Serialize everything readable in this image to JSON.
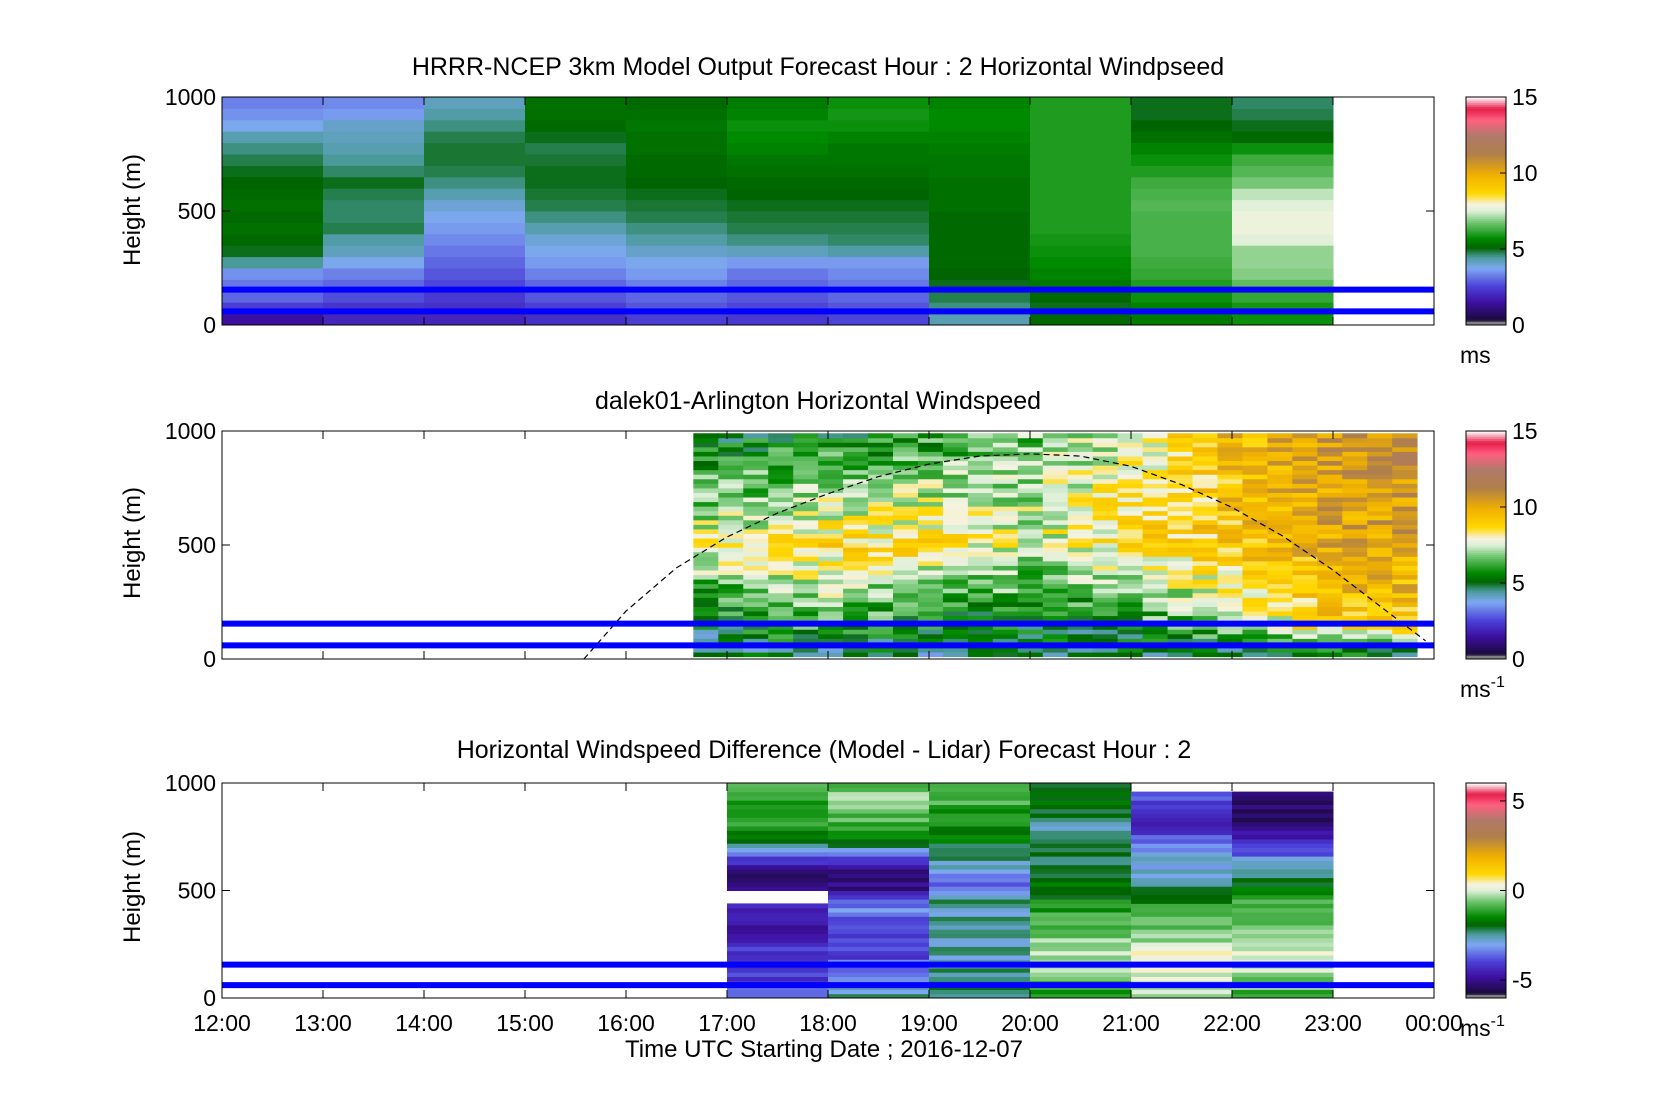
{
  "chart_data": [
    {
      "type": "heatmap",
      "title": "HRRR-NCEP 3km Model Output   Forecast Hour : 2 Horizontal Windpseed",
      "ylabel": "Height (m)",
      "ylim": [
        0,
        1000
      ],
      "xlim": [
        "12:00",
        "00:00"
      ],
      "yticks": [
        "0",
        "500",
        "1000"
      ],
      "colorbar": {
        "range": [
          0,
          15
        ],
        "ticks": [
          "0",
          "5",
          "10",
          "15"
        ],
        "unit_base": "ms",
        "unit_sup": ""
      },
      "reference_heights_m": [
        60,
        155
      ],
      "cell_height_m": 50,
      "columns": [
        {
          "t0": "12:00",
          "t1": "13:00",
          "ws": [
            1.5,
            2.5,
            3.0,
            3.2,
            3.5,
            4.5,
            5.0,
            5.2,
            5.3,
            5.2,
            5.3,
            5.2,
            5.1,
            5.0,
            4.8,
            4.6,
            4.3,
            3.8,
            3.5,
            3.3
          ]
        },
        {
          "t0": "13:00",
          "t1": "14:00",
          "ws": [
            2.0,
            2.3,
            2.7,
            3.0,
            3.3,
            3.8,
            4.2,
            4.4,
            4.8,
            4.7,
            4.7,
            4.8,
            5.0,
            4.7,
            4.5,
            4.3,
            4.2,
            4.1,
            3.6,
            3.4
          ]
        },
        {
          "t0": "14:00",
          "t1": "15:00",
          "ws": [
            2.0,
            2.2,
            2.4,
            2.6,
            2.8,
            3.0,
            3.2,
            3.4,
            3.6,
            3.8,
            4.0,
            4.3,
            4.6,
            4.8,
            4.9,
            4.9,
            4.8,
            4.6,
            4.4,
            4.2
          ]
        },
        {
          "t0": "15:00",
          "t1": "16:00",
          "ws": [
            2.2,
            2.5,
            2.8,
            3.0,
            3.3,
            3.6,
            3.8,
            4.0,
            4.3,
            4.6,
            4.8,
            4.9,
            5.0,
            5.0,
            4.9,
            4.8,
            5.0,
            5.2,
            5.3,
            5.3
          ]
        },
        {
          "t0": "16:00",
          "t1": "17:00",
          "ws": [
            2.5,
            2.8,
            3.0,
            3.3,
            3.6,
            3.8,
            4.1,
            4.4,
            4.6,
            4.8,
            4.9,
            5.0,
            5.1,
            5.2,
            5.2,
            5.3,
            5.3,
            5.4,
            5.3,
            5.2
          ]
        },
        {
          "t0": "17:00",
          "t1": "18:00",
          "ws": [
            2.4,
            2.6,
            2.8,
            3.0,
            3.2,
            3.6,
            4.2,
            4.6,
            4.8,
            4.9,
            5.0,
            5.1,
            5.2,
            5.3,
            5.4,
            5.6,
            5.7,
            5.8,
            5.6,
            5.5
          ]
        },
        {
          "t0": "18:00",
          "t1": "19:00",
          "ws": [
            2.6,
            2.8,
            3.0,
            3.2,
            3.4,
            3.6,
            4.4,
            4.7,
            4.8,
            4.9,
            5.0,
            5.1,
            5.2,
            5.3,
            5.4,
            5.4,
            5.6,
            5.8,
            5.9,
            5.8
          ]
        },
        {
          "t0": "19:00",
          "t1": "20:00",
          "ws": [
            4.3,
            4.6,
            4.8,
            5.0,
            5.1,
            5.2,
            5.2,
            5.2,
            5.2,
            5.2,
            5.3,
            5.3,
            5.3,
            5.4,
            5.4,
            5.5,
            5.6,
            5.7,
            5.7,
            5.6
          ]
        },
        {
          "t0": "20:00",
          "t1": "21:00",
          "ws": [
            5.2,
            5.0,
            5.2,
            5.4,
            5.6,
            5.7,
            5.8,
            5.9,
            6.0,
            6.0,
            6.0,
            6.0,
            6.0,
            6.0,
            6.0,
            6.0,
            6.0,
            6.0,
            6.0,
            6.0
          ]
        },
        {
          "t0": "21:00",
          "t1": "22:00",
          "ws": [
            5.5,
            5.6,
            5.8,
            6.0,
            6.2,
            6.3,
            6.4,
            6.4,
            6.4,
            6.4,
            6.5,
            6.4,
            6.3,
            6.0,
            5.8,
            5.6,
            5.3,
            5.1,
            5.0,
            5.0
          ]
        },
        {
          "t0": "22:00",
          "t1": "23:00",
          "ws": [
            5.8,
            5.9,
            6.2,
            6.6,
            6.9,
            7.0,
            7.0,
            7.6,
            7.8,
            7.8,
            7.6,
            7.3,
            6.8,
            6.5,
            6.3,
            5.8,
            5.2,
            5.0,
            4.8,
            4.7
          ]
        }
      ]
    },
    {
      "type": "heatmap",
      "title": "dalek01-Arlington  Horizontal Windspeed",
      "ylabel": "Height (m)",
      "ylim": [
        0,
        1000
      ],
      "xlim": [
        "12:00",
        "00:00"
      ],
      "yticks": [
        "0",
        "500",
        "1000"
      ],
      "colorbar": {
        "range": [
          0,
          15
        ],
        "ticks": [
          "0",
          "5",
          "10",
          "15"
        ],
        "unit_base": "ms",
        "unit_sup": "-1"
      },
      "reference_heights_m": [
        60,
        155
      ],
      "lidar": {
        "start": "16:40",
        "end": "23:50",
        "z_min_m": 10,
        "z_max_m": 980,
        "bin_minutes": 15,
        "gate_m": 20,
        "low_level_ws": 4.5,
        "profile": [
          {
            "t": "16:40",
            "low": 5.0,
            "mid": 7.8,
            "top": 5.2
          },
          {
            "t": "18:00",
            "low": 6.2,
            "mid": 8.6,
            "top": 5.5
          },
          {
            "t": "19:00",
            "low": 5.5,
            "mid": 8.5,
            "top": 6.0
          },
          {
            "t": "20:00",
            "low": 5.2,
            "mid": 7.6,
            "top": 6.8
          },
          {
            "t": "21:00",
            "low": 5.8,
            "mid": 8.5,
            "top": 7.8
          },
          {
            "t": "22:00",
            "low": 7.0,
            "mid": 9.2,
            "top": 9.5
          },
          {
            "t": "23:00",
            "low": 9.0,
            "mid": 10.0,
            "top": 10.6
          },
          {
            "t": "23:50",
            "low": 9.2,
            "mid": 10.2,
            "top": 11.0
          }
        ]
      },
      "mixing_height_curve": [
        {
          "t": "15:35",
          "z": 0
        },
        {
          "t": "16:00",
          "z": 210
        },
        {
          "t": "16:30",
          "z": 400
        },
        {
          "t": "17:00",
          "z": 535
        },
        {
          "t": "17:30",
          "z": 640
        },
        {
          "t": "18:00",
          "z": 725
        },
        {
          "t": "18:30",
          "z": 800
        },
        {
          "t": "19:00",
          "z": 855
        },
        {
          "t": "19:30",
          "z": 890
        },
        {
          "t": "20:00",
          "z": 900
        },
        {
          "t": "20:30",
          "z": 890
        },
        {
          "t": "21:00",
          "z": 845
        },
        {
          "t": "21:30",
          "z": 765
        },
        {
          "t": "22:00",
          "z": 665
        },
        {
          "t": "22:30",
          "z": 540
        },
        {
          "t": "23:00",
          "z": 390
        },
        {
          "t": "23:30",
          "z": 220
        },
        {
          "t": "23:55",
          "z": 80
        }
      ]
    },
    {
      "type": "heatmap",
      "title": "Horizontal Windspeed Difference (Model - Lidar) Forecast Hour : 2",
      "xlabel": "Time UTC  Starting Date ; 2016-12-07",
      "ylabel": "Height (m)",
      "ylim": [
        0,
        1000
      ],
      "xlim": [
        "12:00",
        "00:00"
      ],
      "xticks": [
        "12:00",
        "13:00",
        "14:00",
        "15:00",
        "16:00",
        "17:00",
        "18:00",
        "19:00",
        "20:00",
        "21:00",
        "22:00",
        "23:00",
        "00:00"
      ],
      "yticks": [
        "0",
        "500",
        "1000"
      ],
      "colorbar": {
        "range": [
          -6,
          6
        ],
        "ticks": [
          "-5",
          "0",
          "5"
        ],
        "unit_base": "ms",
        "unit_sup": "-1"
      },
      "reference_heights_m": [
        60,
        155
      ],
      "cell_height_m": 20,
      "columns": [
        {
          "t0": "17:00",
          "t1": "18:00",
          "z_top_m": 1000,
          "gap_m": [
            440,
            510
          ],
          "diff": [
            {
              "z": 0,
              "v": -3.0
            },
            {
              "z": 100,
              "v": -4.2
            },
            {
              "z": 200,
              "v": -4.0
            },
            {
              "z": 300,
              "v": -4.8
            },
            {
              "z": 420,
              "v": -4.2
            },
            {
              "z": 520,
              "v": -5.0
            },
            {
              "z": 600,
              "v": -5.2
            },
            {
              "z": 700,
              "v": -2.5
            },
            {
              "z": 800,
              "v": -1.2
            },
            {
              "z": 900,
              "v": -1.0
            },
            {
              "z": 1000,
              "v": -1.0
            }
          ]
        },
        {
          "t0": "18:00",
          "t1": "19:00",
          "z_top_m": 1000,
          "diff": [
            {
              "z": 0,
              "v": -2.5
            },
            {
              "z": 100,
              "v": -3.0
            },
            {
              "z": 200,
              "v": -4.0
            },
            {
              "z": 350,
              "v": -3.8
            },
            {
              "z": 450,
              "v": -3.2
            },
            {
              "z": 500,
              "v": -5.2
            },
            {
              "z": 600,
              "v": -5.0
            },
            {
              "z": 700,
              "v": -2.5
            },
            {
              "z": 800,
              "v": -1.0
            },
            {
              "z": 900,
              "v": -0.5
            },
            {
              "z": 1000,
              "v": -0.6
            }
          ]
        },
        {
          "t0": "19:00",
          "t1": "20:00",
          "z_top_m": 1000,
          "diff": [
            {
              "z": 0,
              "v": -2.0
            },
            {
              "z": 150,
              "v": -2.5
            },
            {
              "z": 300,
              "v": -2.6
            },
            {
              "z": 450,
              "v": -2.5
            },
            {
              "z": 500,
              "v": -3.8
            },
            {
              "z": 600,
              "v": -3.0
            },
            {
              "z": 700,
              "v": -2.0
            },
            {
              "z": 800,
              "v": -1.5
            },
            {
              "z": 900,
              "v": -1.0
            },
            {
              "z": 1000,
              "v": -1.2
            }
          ]
        },
        {
          "t0": "20:00",
          "t1": "21:00",
          "z_top_m": 1000,
          "diff": [
            {
              "z": 0,
              "v": -1.2
            },
            {
              "z": 100,
              "v": -0.6
            },
            {
              "z": 200,
              "v": -0.3
            },
            {
              "z": 300,
              "v": -0.5
            },
            {
              "z": 400,
              "v": -1.2
            },
            {
              "z": 500,
              "v": -1.8
            },
            {
              "z": 600,
              "v": -2.2
            },
            {
              "z": 700,
              "v": -2.4
            },
            {
              "z": 800,
              "v": -2.5
            },
            {
              "z": 900,
              "v": -2.0
            },
            {
              "z": 1000,
              "v": -1.6
            }
          ]
        },
        {
          "t0": "21:00",
          "t1": "22:00",
          "z_top_m": 960,
          "diff": [
            {
              "z": 0,
              "v": -0.4
            },
            {
              "z": 100,
              "v": 0.2
            },
            {
              "z": 200,
              "v": 0.3
            },
            {
              "z": 300,
              "v": -0.5
            },
            {
              "z": 400,
              "v": -1.0
            },
            {
              "z": 500,
              "v": -2.0
            },
            {
              "z": 600,
              "v": -2.8
            },
            {
              "z": 700,
              "v": -3.2
            },
            {
              "z": 800,
              "v": -4.2
            },
            {
              "z": 900,
              "v": -4.0
            },
            {
              "z": 960,
              "v": -4.0
            }
          ]
        },
        {
          "t0": "22:00",
          "t1": "23:00",
          "z_top_m": 960,
          "diff": [
            {
              "z": 0,
              "v": -1.0
            },
            {
              "z": 100,
              "v": -0.4
            },
            {
              "z": 200,
              "v": 0.2
            },
            {
              "z": 300,
              "v": -0.5
            },
            {
              "z": 400,
              "v": -0.8
            },
            {
              "z": 500,
              "v": -1.5
            },
            {
              "z": 600,
              "v": -2.5
            },
            {
              "z": 700,
              "v": -4.0
            },
            {
              "z": 800,
              "v": -5.2
            },
            {
              "z": 900,
              "v": -5.5
            },
            {
              "z": 960,
              "v": -5.6
            }
          ]
        }
      ]
    }
  ],
  "colormap": {
    "name": "windspeed",
    "stops": [
      {
        "f": 0.0,
        "c": "#808080"
      },
      {
        "f": 0.02,
        "c": "#808080"
      },
      {
        "f": 0.021,
        "c": "#1a0a3a"
      },
      {
        "f": 0.1,
        "c": "#3d0fa0"
      },
      {
        "f": 0.17,
        "c": "#4b40d8"
      },
      {
        "f": 0.25,
        "c": "#7ea8f2"
      },
      {
        "f": 0.3,
        "c": "#4a9a9a"
      },
      {
        "f": 0.34,
        "c": "#006400"
      },
      {
        "f": 0.38,
        "c": "#008a00"
      },
      {
        "f": 0.45,
        "c": "#6ec46e"
      },
      {
        "f": 0.5,
        "c": "#dcefd8"
      },
      {
        "f": 0.53,
        "c": "#f6f3e0"
      },
      {
        "f": 0.58,
        "c": "#ffd700"
      },
      {
        "f": 0.66,
        "c": "#f0b000"
      },
      {
        "f": 0.75,
        "c": "#b08048"
      },
      {
        "f": 0.83,
        "c": "#b07a6a"
      },
      {
        "f": 0.9,
        "c": "#ff6080"
      },
      {
        "f": 0.95,
        "c": "#e61e4a"
      },
      {
        "f": 1.0,
        "c": "#ffffff"
      }
    ],
    "reference_line_color": "#0000ff",
    "mixing_height_line_color": "#000000"
  }
}
